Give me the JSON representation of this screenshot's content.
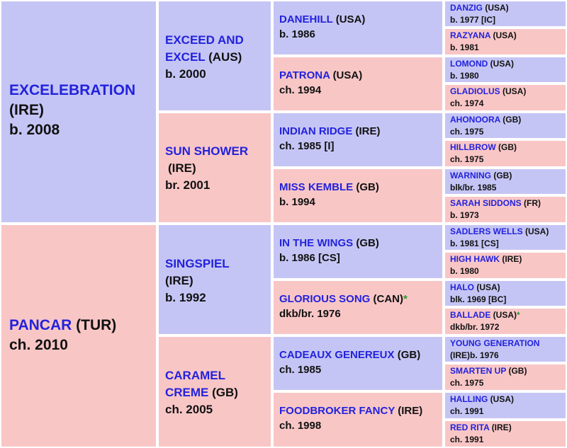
{
  "pedigree": {
    "g0": [
      {
        "name": "EXCELEBRATION",
        "country": "(IRE)",
        "detail": "b. 2008",
        "star": ""
      },
      {
        "name": "PANCAR",
        "country": "(TUR)",
        "detail": "ch. 2010",
        "star": ""
      }
    ],
    "g1": [
      {
        "name": "EXCEED AND EXCEL",
        "country": "(AUS)",
        "detail": "b. 2000",
        "star": ""
      },
      {
        "name": "SUN SHOWER",
        "country": "(IRE)",
        "detail": "br. 2001",
        "star": ""
      },
      {
        "name": "SINGSPIEL",
        "country": "(IRE)",
        "detail": "b. 1992",
        "star": ""
      },
      {
        "name": "CARAMEL CREME",
        "country": "(GB)",
        "detail": "ch. 2005",
        "star": ""
      }
    ],
    "g2": [
      {
        "name": "DANEHILL",
        "country": "(USA)",
        "detail": "b. 1986",
        "star": ""
      },
      {
        "name": "PATRONA",
        "country": "(USA)",
        "detail": "ch. 1994",
        "star": ""
      },
      {
        "name": "INDIAN RIDGE",
        "country": "(IRE)",
        "detail": "ch. 1985 [I]",
        "star": ""
      },
      {
        "name": "MISS KEMBLE",
        "country": "(GB)",
        "detail": "b. 1994",
        "star": ""
      },
      {
        "name": "IN THE WINGS",
        "country": "(GB)",
        "detail": "b. 1986 [CS]",
        "star": ""
      },
      {
        "name": "GLORIOUS SONG",
        "country": "(CAN)",
        "detail": "dkb/br. 1976",
        "star": "*"
      },
      {
        "name": "CADEAUX GENEREUX",
        "country": "(GB)",
        "detail": "ch. 1985",
        "star": ""
      },
      {
        "name": "FOODBROKER FANCY",
        "country": "(IRE)",
        "detail": "ch. 1998",
        "star": ""
      }
    ],
    "g3": [
      {
        "name": "DANZIG",
        "country": "(USA)",
        "detail": "b. 1977 [IC]",
        "star": ""
      },
      {
        "name": "RAZYANA",
        "country": "(USA)",
        "detail": "b. 1981",
        "star": ""
      },
      {
        "name": "LOMOND",
        "country": "(USA)",
        "detail": "b. 1980",
        "star": ""
      },
      {
        "name": "GLADIOLUS",
        "country": "(USA)",
        "detail": "ch. 1974",
        "star": ""
      },
      {
        "name": "AHONOORA",
        "country": "(GB)",
        "detail": "ch. 1975",
        "star": ""
      },
      {
        "name": "HILLBROW",
        "country": "(GB)",
        "detail": "ch. 1975",
        "star": ""
      },
      {
        "name": "WARNING",
        "country": "(GB)",
        "detail": "blk/br. 1985",
        "star": ""
      },
      {
        "name": "SARAH SIDDONS",
        "country": "(FR)",
        "detail": "b. 1973",
        "star": ""
      },
      {
        "name": "SADLERS WELLS",
        "country": "(USA)",
        "detail": "b. 1981 [CS]",
        "star": ""
      },
      {
        "name": "HIGH HAWK",
        "country": "(IRE)",
        "detail": "b. 1980",
        "star": ""
      },
      {
        "name": "HALO",
        "country": "(USA)",
        "detail": "blk. 1969 [BC]",
        "star": ""
      },
      {
        "name": "BALLADE",
        "country": "(USA)",
        "detail": "dkb/br. 1972",
        "star": "*"
      },
      {
        "name": "YOUNG GENERATION",
        "country": "(IRE)",
        "detail": "b. 1976",
        "star": ""
      },
      {
        "name": "SMARTEN UP",
        "country": "(GB)",
        "detail": "ch. 1975",
        "star": ""
      },
      {
        "name": "HALLING",
        "country": "(USA)",
        "detail": "ch. 1991",
        "star": ""
      },
      {
        "name": "RED RITA",
        "country": "(IRE)",
        "detail": "ch. 1991",
        "star": ""
      }
    ]
  },
  "colors": {
    "sire_bg": "#c5c5f5",
    "dam_bg": "#f9c6c6",
    "name_text": "#2222dd",
    "star": "#2a9a2a"
  }
}
